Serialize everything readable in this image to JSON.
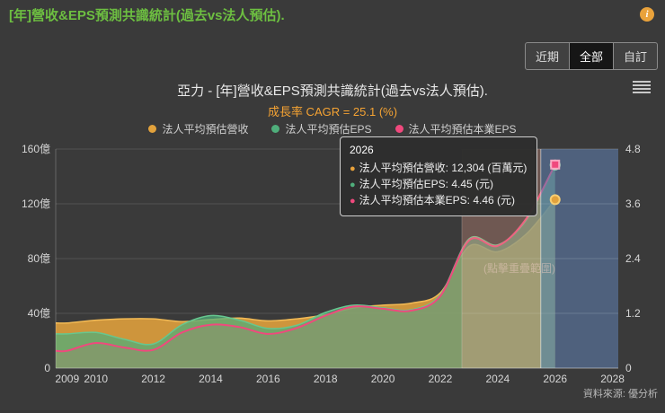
{
  "page": {
    "title": "[年]營收&EPS預測共識統計(過去vs法人預估).",
    "info_icon": "i",
    "source": "資料來源: 優分析"
  },
  "toolbar": {
    "buttons": [
      {
        "label": "近期",
        "active": false
      },
      {
        "label": "全部",
        "active": true
      },
      {
        "label": "自訂",
        "active": false
      }
    ]
  },
  "chart": {
    "title": "亞力 - [年]營收&EPS預測共識統計(過去vs法人預估).",
    "subtitle": "成長率 CAGR = 25.1 (%)",
    "watermark": "(點擊重疊範圍)"
  },
  "tooltip": {
    "title": "2026",
    "rows": [
      {
        "label": "法人平均預估營收:",
        "value": "12,304 (百萬元)",
        "color": "#E9A23B"
      },
      {
        "label": "法人平均預估EPS:",
        "value": "4.45 (元)",
        "color": "#4FAE7B"
      },
      {
        "label": "法人平均預估本業EPS:",
        "value": "4.46 (元)",
        "color": "#F0497D"
      }
    ]
  },
  "chart_data": {
    "type": "area",
    "title": "亞力 - [年]營收&EPS預測共識統計(過去vs法人預估).",
    "subtitle_cagr_pct": 25.1,
    "x": [
      2009,
      2010,
      2011,
      2012,
      2013,
      2014,
      2015,
      2016,
      2017,
      2018,
      2019,
      2020,
      2021,
      2022,
      2023,
      2024,
      2025,
      2026
    ],
    "series": [
      {
        "name": "法人平均預估營收",
        "axis": "left",
        "unit": "百萬元",
        "color": "#E2A23C",
        "line_color": "#F2BA55",
        "fill_opacity": 0.88,
        "line_width": 1.5,
        "values": [
          33,
          35,
          36,
          36,
          34,
          35.5,
          36.5,
          34.5,
          36,
          39,
          44,
          46,
          47.5,
          55,
          89,
          85,
          98,
          123.04
        ]
      },
      {
        "name": "法人平均預估EPS",
        "axis": "right",
        "unit": "元",
        "color": "#4FAE7B",
        "line_color": "#66C78F",
        "fill_opacity": 0.72,
        "line_width": 1.5,
        "values": [
          0.75,
          0.78,
          0.63,
          0.53,
          0.95,
          1.15,
          1.05,
          0.87,
          0.94,
          1.22,
          1.38,
          1.32,
          1.28,
          1.61,
          2.83,
          2.7,
          3.25,
          4.45
        ]
      },
      {
        "name": "法人平均預估本業EPS",
        "axis": "right",
        "unit": "元",
        "color": "#F0497D",
        "line_color": "#F0497D",
        "fill_opacity": 0.12,
        "line_width": 2,
        "values": [
          0.38,
          0.55,
          0.45,
          0.4,
          0.78,
          0.95,
          0.9,
          0.75,
          0.88,
          1.15,
          1.35,
          1.3,
          1.26,
          1.58,
          2.8,
          2.68,
          3.28,
          4.46
        ]
      }
    ],
    "left_axis": {
      "min": 0,
      "max": 160,
      "tick_values": [
        160,
        120,
        80,
        40,
        0
      ],
      "tick_labels": [
        "160億",
        "120億",
        "80億",
        "40億",
        "0"
      ]
    },
    "right_axis": {
      "min": 0,
      "max": 4.8,
      "tick_values": [
        4.8,
        3.6,
        2.4,
        1.2,
        0
      ],
      "tick_labels": [
        "4.8",
        "3.6",
        "2.4",
        "1.2",
        "0"
      ]
    },
    "x_ticks": [
      2009,
      2010,
      2012,
      2014,
      2016,
      2018,
      2020,
      2022,
      2024,
      2026,
      2028
    ],
    "x_range": [
      2008.6,
      2028.2
    ],
    "bands": [
      {
        "name": "forecast-highlight",
        "from": 2022.75,
        "to": 2025.5,
        "color": "rgba(235,160,140,0.30)"
      },
      {
        "name": "future",
        "from": 2025.5,
        "to": 2028.2,
        "color": "rgba(96,130,180,0.55)"
      }
    ],
    "crosshair_x": 2025.5,
    "markers": [
      {
        "series": 0,
        "x": 2026,
        "value": 123.04,
        "shape": "circle"
      },
      {
        "series": 1,
        "x": 2026,
        "value": 4.45,
        "shape": "circle"
      },
      {
        "series": 2,
        "x": 2026,
        "value": 4.46,
        "shape": "square"
      }
    ]
  }
}
